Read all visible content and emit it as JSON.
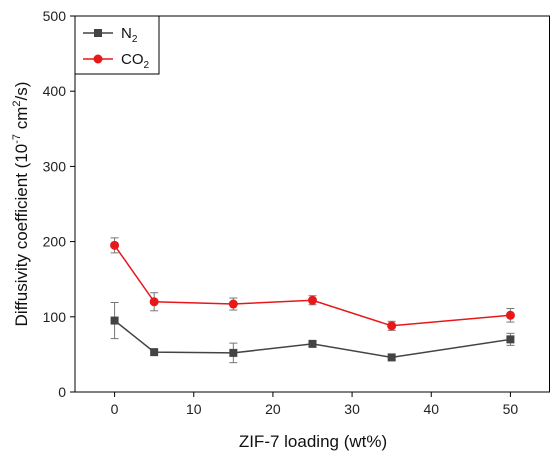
{
  "chart_data": {
    "type": "line",
    "x": [
      0,
      5,
      15,
      25,
      35,
      50
    ],
    "series": [
      {
        "name": "N",
        "name_sub": "2",
        "color": "#444444",
        "marker": "square",
        "values": [
          95,
          53,
          52,
          64,
          46,
          70
        ],
        "errors": [
          24,
          0,
          13,
          0,
          0,
          8
        ]
      },
      {
        "name": "CO",
        "name_sub": "2",
        "color": "#e8171a",
        "marker": "circle",
        "values": [
          195,
          120,
          117,
          122,
          88,
          102
        ],
        "errors": [
          10,
          12,
          8,
          6,
          6,
          9
        ]
      }
    ],
    "xlabel": "ZIF-7 loading (wt%)",
    "ylabel_main": "Diffusivity coefficient (10",
    "ylabel_sup1": "-7",
    "ylabel_mid": " cm",
    "ylabel_sup2": "2",
    "ylabel_end": "/s)",
    "xlim": [
      -5,
      55
    ],
    "ylim": [
      0,
      500
    ],
    "xticks": [
      0,
      10,
      20,
      30,
      40,
      50
    ],
    "xtick_labels": [
      "0",
      "10",
      "20",
      "30",
      "40",
      "50"
    ],
    "yticks": [
      0,
      100,
      200,
      300,
      400,
      500
    ],
    "ytick_labels": [
      "0",
      "100",
      "200",
      "300",
      "400",
      "500"
    ],
    "grid": false,
    "legend_placement": "top-left"
  }
}
